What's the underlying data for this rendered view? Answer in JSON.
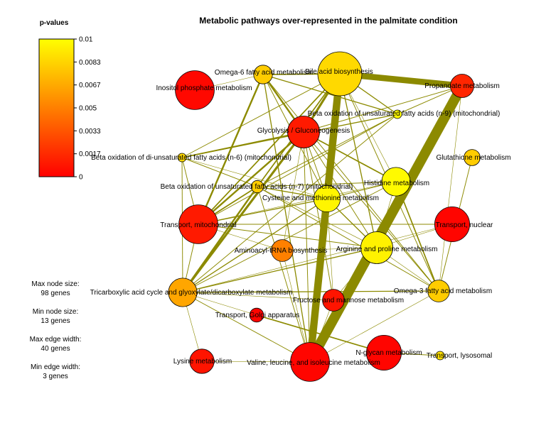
{
  "title": "Metabolic pathways over-represented in the palmitate condition",
  "legend": {
    "title": "p-values",
    "ticks": [
      "0.01",
      "0.0083",
      "0.0067",
      "0.005",
      "0.0033",
      "0.0017",
      "0"
    ],
    "colors": {
      "high": "#ffff00",
      "low": "#ff0000"
    }
  },
  "size_notes": [
    "Max node size:",
    "98 genes",
    "Min node size:",
    "13 genes",
    "Max edge width:",
    "40 genes",
    "Min edge width:",
    "3 genes"
  ],
  "style": {
    "edge_color": "#8c8a00",
    "node_stroke": "#000000"
  },
  "chart_data": {
    "type": "network",
    "nodes": [
      {
        "id": "inositol",
        "label": "Inositol phosphate metabolism",
        "genes": 75,
        "pvalue": 0.0003
      },
      {
        "id": "omega6",
        "label": "Omega-6 fatty acid metabolism",
        "genes": 20,
        "pvalue": 0.008
      },
      {
        "id": "bileacid",
        "label": "Bile acid biosynthesis",
        "genes": 98,
        "pvalue": 0.0085
      },
      {
        "id": "propanoate",
        "label": "Propanoate metabolism",
        "genes": 28,
        "pvalue": 0.0015
      },
      {
        "id": "betaox9",
        "label": "Beta oxidation of unsaturated fatty acids (n-9) (mitochondrial)",
        "genes": 13,
        "pvalue": 0.0098
      },
      {
        "id": "glycolysis",
        "label": "Glycolysis / Gluconeogenesis",
        "genes": 50,
        "pvalue": 0.001
      },
      {
        "id": "betaoxdi6",
        "label": "Beta oxidation of di-unsaturated fatty acids (n-6) (mitochondrial)",
        "genes": 13,
        "pvalue": 0.0085
      },
      {
        "id": "glutathione",
        "label": "Glutathione metabolism",
        "genes": 17,
        "pvalue": 0.008
      },
      {
        "id": "betaox7",
        "label": "Beta oxidation of unsaturated fatty acids (n-7) (mitochondrial)",
        "genes": 14,
        "pvalue": 0.008
      },
      {
        "id": "histidine",
        "label": "Histidine metabolism",
        "genes": 40,
        "pvalue": 0.0098
      },
      {
        "id": "cysteine",
        "label": "Cysteine and methionine metabolism",
        "genes": 35,
        "pvalue": 0.0096
      },
      {
        "id": "transmito",
        "label": "Transport, mitochondrial",
        "genes": 75,
        "pvalue": 0.001
      },
      {
        "id": "transnuc",
        "label": "Transport, nuclear",
        "genes": 60,
        "pvalue": 0.0002
      },
      {
        "id": "aminoacyl",
        "label": "Aminoacyl-tRNA biosynthesis",
        "genes": 25,
        "pvalue": 0.005
      },
      {
        "id": "arginine",
        "label": "Arginine and proline metabolism",
        "genes": 50,
        "pvalue": 0.0095
      },
      {
        "id": "tca",
        "label": "Tricarboxylic acid cycle and glyoxylate/dicarboxylate metabolism",
        "genes": 40,
        "pvalue": 0.0065
      },
      {
        "id": "omega3",
        "label": "Omega-3 fatty acid metabolism",
        "genes": 25,
        "pvalue": 0.008
      },
      {
        "id": "fructose",
        "label": "Fructose and mannose metabolism",
        "genes": 25,
        "pvalue": 0.0008
      },
      {
        "id": "golgi",
        "label": "Transport, Golgi apparatus",
        "genes": 15,
        "pvalue": 0.0002
      },
      {
        "id": "nglycan",
        "label": "N-glycan metabolism",
        "genes": 60,
        "pvalue": 0.0002
      },
      {
        "id": "lysosomal",
        "label": "Transport, lysosomal",
        "genes": 13,
        "pvalue": 0.0088
      },
      {
        "id": "lysine",
        "label": "Lysine metabolism",
        "genes": 30,
        "pvalue": 0.0008
      },
      {
        "id": "valine",
        "label": "Valine, leucine, and isoleucine metabolism",
        "genes": 75,
        "pvalue": 0.0002
      }
    ],
    "edges": [
      {
        "from": "bileacid",
        "to": "valine",
        "w": 30
      },
      {
        "from": "propanoate",
        "to": "valine",
        "w": 40
      },
      {
        "from": "bileacid",
        "to": "propanoate",
        "w": 25
      },
      {
        "from": "omega6",
        "to": "bileacid",
        "w": 6
      },
      {
        "from": "omega6",
        "to": "glycolysis",
        "w": 8
      },
      {
        "from": "omega6",
        "to": "betaox9",
        "w": 5
      },
      {
        "from": "omega6",
        "to": "transmito",
        "w": 8
      },
      {
        "from": "omega6",
        "to": "valine",
        "w": 5
      },
      {
        "from": "omega6",
        "to": "cysteine",
        "w": 4
      },
      {
        "from": "omega6",
        "to": "omega3",
        "w": 4
      },
      {
        "from": "omega6",
        "to": "inositol",
        "w": 3
      },
      {
        "from": "bileacid",
        "to": "glycolysis",
        "w": 10
      },
      {
        "from": "bileacid",
        "to": "betaox9",
        "w": 5
      },
      {
        "from": "bileacid",
        "to": "betaox7",
        "w": 6
      },
      {
        "from": "bileacid",
        "to": "arginine",
        "w": 5
      },
      {
        "from": "bileacid",
        "to": "omega3",
        "w": 4
      },
      {
        "from": "bileacid",
        "to": "transmito",
        "w": 6
      },
      {
        "from": "bileacid",
        "to": "betaoxdi6",
        "w": 4
      },
      {
        "from": "bileacid",
        "to": "histidine",
        "w": 3
      },
      {
        "from": "propanoate",
        "to": "betaox9",
        "w": 4
      },
      {
        "from": "propanoate",
        "to": "glycolysis",
        "w": 4
      },
      {
        "from": "glycolysis",
        "to": "tca",
        "w": 10
      },
      {
        "from": "glycolysis",
        "to": "betaoxdi6",
        "w": 6
      },
      {
        "from": "glycolysis",
        "to": "transmito",
        "w": 8
      },
      {
        "from": "glycolysis",
        "to": "histidine",
        "w": 6
      },
      {
        "from": "glycolysis",
        "to": "cysteine",
        "w": 4
      },
      {
        "from": "glycolysis",
        "to": "arginine",
        "w": 4
      },
      {
        "from": "glycolysis",
        "to": "fructose",
        "w": 4
      },
      {
        "from": "glycolysis",
        "to": "valine",
        "w": 4
      },
      {
        "from": "glycolysis",
        "to": "omega3",
        "w": 4
      },
      {
        "from": "glycolysis",
        "to": "aminoacyl",
        "w": 3
      },
      {
        "from": "betaox9",
        "to": "betaoxdi6",
        "w": 5
      },
      {
        "from": "betaox9",
        "to": "betaox7",
        "w": 4
      },
      {
        "from": "betaox9",
        "to": "transmito",
        "w": 4
      },
      {
        "from": "betaox9",
        "to": "tca",
        "w": 4
      },
      {
        "from": "betaoxdi6",
        "to": "betaox7",
        "w": 4
      },
      {
        "from": "betaoxdi6",
        "to": "transmito",
        "w": 4
      },
      {
        "from": "betaoxdi6",
        "to": "tca",
        "w": 4
      },
      {
        "from": "betaoxdi6",
        "to": "cysteine",
        "w": 3
      },
      {
        "from": "betaox7",
        "to": "transmito",
        "w": 6
      },
      {
        "from": "betaox7",
        "to": "tca",
        "w": 8
      },
      {
        "from": "betaox7",
        "to": "cysteine",
        "w": 5
      },
      {
        "from": "betaox7",
        "to": "histidine",
        "w": 4
      },
      {
        "from": "betaox7",
        "to": "omega3",
        "w": 4
      },
      {
        "from": "betaox7",
        "to": "valine",
        "w": 4
      },
      {
        "from": "betaox7",
        "to": "arginine",
        "w": 3
      },
      {
        "from": "cysteine",
        "to": "valine",
        "w": 8
      },
      {
        "from": "cysteine",
        "to": "tca",
        "w": 5
      },
      {
        "from": "cysteine",
        "to": "arginine",
        "w": 5
      },
      {
        "from": "cysteine",
        "to": "histidine",
        "w": 4
      },
      {
        "from": "cysteine",
        "to": "transmito",
        "w": 5
      },
      {
        "from": "cysteine",
        "to": "fructose",
        "w": 3
      },
      {
        "from": "histidine",
        "to": "tca",
        "w": 4
      },
      {
        "from": "histidine",
        "to": "omega3",
        "w": 6
      },
      {
        "from": "histidine",
        "to": "transmito",
        "w": 3
      },
      {
        "from": "histidine",
        "to": "arginine",
        "w": 3
      },
      {
        "from": "arginine",
        "to": "tca",
        "w": 5
      },
      {
        "from": "arginine",
        "to": "transmito",
        "w": 4
      },
      {
        "from": "arginine",
        "to": "valine",
        "w": 4
      },
      {
        "from": "arginine",
        "to": "omega3",
        "w": 3
      },
      {
        "from": "arginine",
        "to": "fructose",
        "w": 3
      },
      {
        "from": "arginine",
        "to": "aminoacyl",
        "w": 3
      },
      {
        "from": "transmito",
        "to": "transnuc",
        "w": 4
      },
      {
        "from": "transmito",
        "to": "tca",
        "w": 4
      },
      {
        "from": "transmito",
        "to": "aminoacyl",
        "w": 3
      },
      {
        "from": "tca",
        "to": "omega3",
        "w": 5
      },
      {
        "from": "tca",
        "to": "valine",
        "w": 4
      },
      {
        "from": "tca",
        "to": "fructose",
        "w": 3
      },
      {
        "from": "tca",
        "to": "lysine",
        "w": 3
      },
      {
        "from": "tca",
        "to": "golgi",
        "w": 3
      },
      {
        "from": "tca",
        "to": "transnuc",
        "w": 3
      },
      {
        "from": "golgi",
        "to": "nglycan",
        "w": 6
      },
      {
        "from": "nglycan",
        "to": "lysosomal",
        "w": 4
      },
      {
        "from": "glutathione",
        "to": "omega3",
        "w": 4
      },
      {
        "from": "omega3",
        "to": "propanoate",
        "w": 3
      },
      {
        "from": "fructose",
        "to": "valine",
        "w": 3
      },
      {
        "from": "aminoacyl",
        "to": "valine",
        "w": 3
      },
      {
        "from": "lysine",
        "to": "valine",
        "w": 3
      },
      {
        "from": "valine",
        "to": "omega3",
        "w": 3
      },
      {
        "from": "transnuc",
        "to": "arginine",
        "w": 3
      }
    ]
  }
}
